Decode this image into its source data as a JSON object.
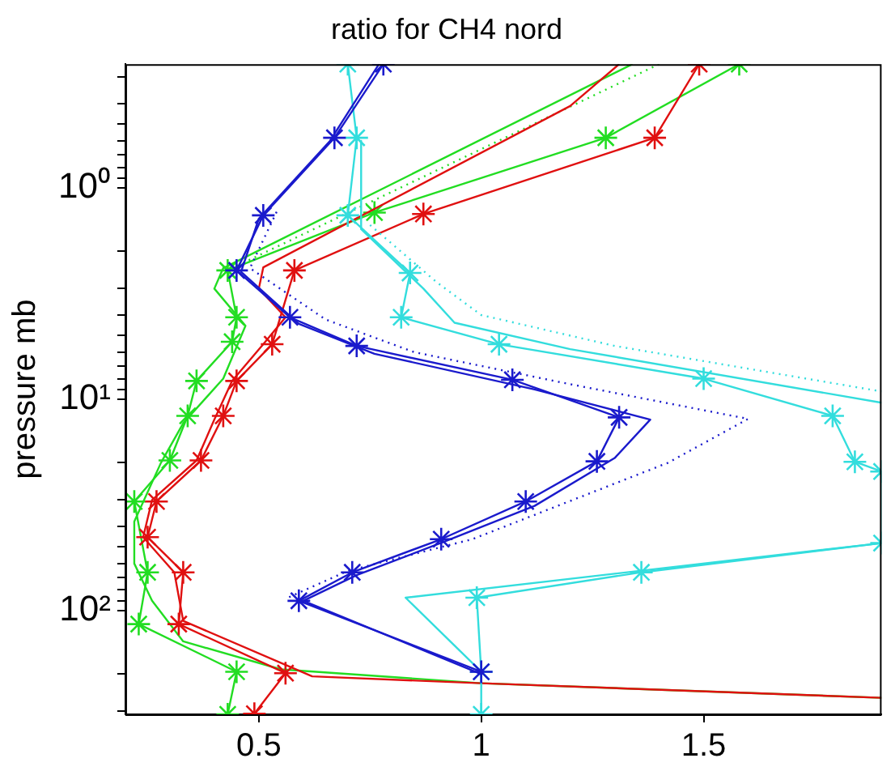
{
  "chart_data": {
    "type": "line",
    "title": "ratio for CH4 nord",
    "ylabel": "pressure mb",
    "log": "y",
    "grid": false,
    "legend": false,
    "xlim": [
      0.2,
      1.9
    ],
    "xticks": [
      0.5,
      1,
      1.5
    ],
    "ylim": [
      310,
      0.26
    ],
    "yticks": [
      {
        "value": 0.3,
        "label": null
      },
      {
        "value": 0.4,
        "label": null
      },
      {
        "value": 0.5,
        "label": null
      },
      {
        "value": 0.6,
        "label": null
      },
      {
        "value": 0.7,
        "label": null
      },
      {
        "value": 0.8,
        "label": null
      },
      {
        "value": 0.9,
        "label": null
      },
      {
        "value": 1,
        "label": "10⁰"
      },
      {
        "value": 2,
        "label": null
      },
      {
        "value": 3,
        "label": null
      },
      {
        "value": 4,
        "label": null
      },
      {
        "value": 5,
        "label": null
      },
      {
        "value": 6,
        "label": null
      },
      {
        "value": 7,
        "label": null
      },
      {
        "value": 8,
        "label": null
      },
      {
        "value": 9,
        "label": null
      },
      {
        "value": 10,
        "label": "10¹"
      },
      {
        "value": 20,
        "label": null
      },
      {
        "value": 30,
        "label": null
      },
      {
        "value": 40,
        "label": null
      },
      {
        "value": 50,
        "label": null
      },
      {
        "value": 60,
        "label": null
      },
      {
        "value": 70,
        "label": null
      },
      {
        "value": 80,
        "label": null
      },
      {
        "value": 90,
        "label": null
      },
      {
        "value": 100,
        "label": "10²"
      },
      {
        "value": 200,
        "label": null
      },
      {
        "value": 300,
        "label": null
      }
    ],
    "series": [
      {
        "color": "#1a1acc",
        "marker": "cross",
        "line_style": "solid",
        "x": [
          0.78,
          0.67,
          0.51,
          0.45,
          0.57,
          0.72,
          1.07,
          1.31,
          1.26,
          1.1,
          0.91,
          0.71,
          0.59,
          1.0
        ],
        "values": [
          0.26,
          0.58,
          1.35,
          2.46,
          4.1,
          5.6,
          8.1,
          12.2,
          19.7,
          30.5,
          46,
          66,
          90,
          195
        ]
      },
      {
        "color": "#1a1acc",
        "marker": "none",
        "line_style": "solid",
        "x": [
          0.77,
          0.66,
          0.5,
          0.46,
          0.59,
          0.76,
          1.12,
          1.38,
          1.3,
          1.12,
          0.92,
          0.72,
          0.6,
          1.0
        ],
        "values": [
          0.26,
          0.6,
          1.4,
          2.5,
          4.4,
          6.1,
          9,
          12.5,
          19,
          32,
          47,
          68,
          90,
          200
        ]
      },
      {
        "color": "#1a1acc",
        "marker": "none",
        "line_style": "dotted",
        "x": [
          0.54,
          0.48,
          0.65,
          0.85,
          1.2,
          1.6,
          1.42,
          0.98,
          0.7,
          0.56
        ],
        "values": [
          1.3,
          2.4,
          4.2,
          6,
          8.5,
          12.4,
          20,
          46,
          65,
          88
        ]
      },
      {
        "color": "#33dddd",
        "marker": "cross",
        "line_style": "solid",
        "x": [
          0.7,
          0.72,
          0.7,
          0.84,
          0.82,
          1.04,
          1.5,
          1.79,
          1.84,
          1.9,
          1.9,
          1.36,
          0.99,
          1.0,
          1.0
        ],
        "values": [
          0.26,
          0.58,
          1.35,
          2.53,
          4.1,
          5.5,
          8,
          12,
          19.8,
          22,
          48,
          66,
          87,
          195,
          310
        ]
      },
      {
        "color": "#33dddd",
        "marker": "none",
        "line_style": "solid",
        "x": [
          0.73,
          0.73,
          0.87,
          0.94,
          1.2,
          1.9
        ],
        "values": [
          0.6,
          1.57,
          3,
          4.35,
          5.8,
          10.4
        ]
      },
      {
        "color": "#33dddd",
        "marker": "none",
        "line_style": "solid",
        "x": [
          1.9,
          0.83,
          1.0
        ],
        "values": [
          48,
          87,
          195
        ]
      },
      {
        "color": "#33dddd",
        "marker": "none",
        "line_style": "dotted",
        "x": [
          0.75,
          0.9,
          1.0,
          1.3,
          1.9
        ],
        "values": [
          1.5,
          2.8,
          4,
          5.6,
          9.2
        ]
      },
      {
        "color": "#e01010",
        "marker": "cross",
        "line_style": "solid",
        "x": [
          1.49,
          1.39,
          0.87,
          0.58,
          0.53,
          0.45,
          0.42,
          0.37,
          0.27,
          0.25,
          0.33,
          0.32,
          0.56,
          0.49
        ],
        "values": [
          0.26,
          0.58,
          1.33,
          2.46,
          5.5,
          8.2,
          12,
          19.5,
          30.5,
          45,
          66,
          116,
          198,
          308
        ]
      },
      {
        "color": "#e01010",
        "marker": "none",
        "line_style": "solid",
        "x": [
          1.31,
          1.2,
          0.51,
          0.5,
          0.56,
          0.51,
          0.44,
          0.4,
          0.36,
          0.26,
          0.24,
          0.31,
          0.33,
          0.62,
          1.0,
          1.9
        ],
        "values": [
          0.26,
          0.41,
          2.38,
          3,
          4.1,
          5.5,
          8.2,
          12.5,
          19.5,
          30,
          45,
          66,
          112,
          205,
          221,
          259
        ]
      },
      {
        "color": "#22dd22",
        "marker": "cross",
        "line_style": "solid",
        "x": [
          1.58,
          1.28,
          0.76,
          0.43,
          0.45,
          0.44,
          0.36,
          0.34,
          0.3,
          0.22,
          0.25,
          0.23,
          0.45,
          0.43
        ],
        "values": [
          0.26,
          0.58,
          1.31,
          2.46,
          4.1,
          5.35,
          8.2,
          12,
          19.5,
          30.5,
          66,
          116,
          195,
          310
        ]
      },
      {
        "color": "#22dd22",
        "marker": "none",
        "line_style": "solid",
        "x": [
          1.34,
          0.42,
          0.4,
          0.47,
          0.42,
          0.33,
          0.28,
          0.22,
          0.22,
          0.26,
          0.33,
          0.55,
          1.0,
          1.9
        ],
        "values": [
          0.26,
          2.4,
          3,
          4.5,
          8,
          13,
          20,
          38,
          60,
          90,
          140,
          190,
          221,
          259
        ]
      },
      {
        "color": "#22dd22",
        "marker": "none",
        "line_style": "dotted",
        "x": [
          1.4,
          0.44
        ],
        "values": [
          0.26,
          2.4
        ]
      }
    ]
  }
}
